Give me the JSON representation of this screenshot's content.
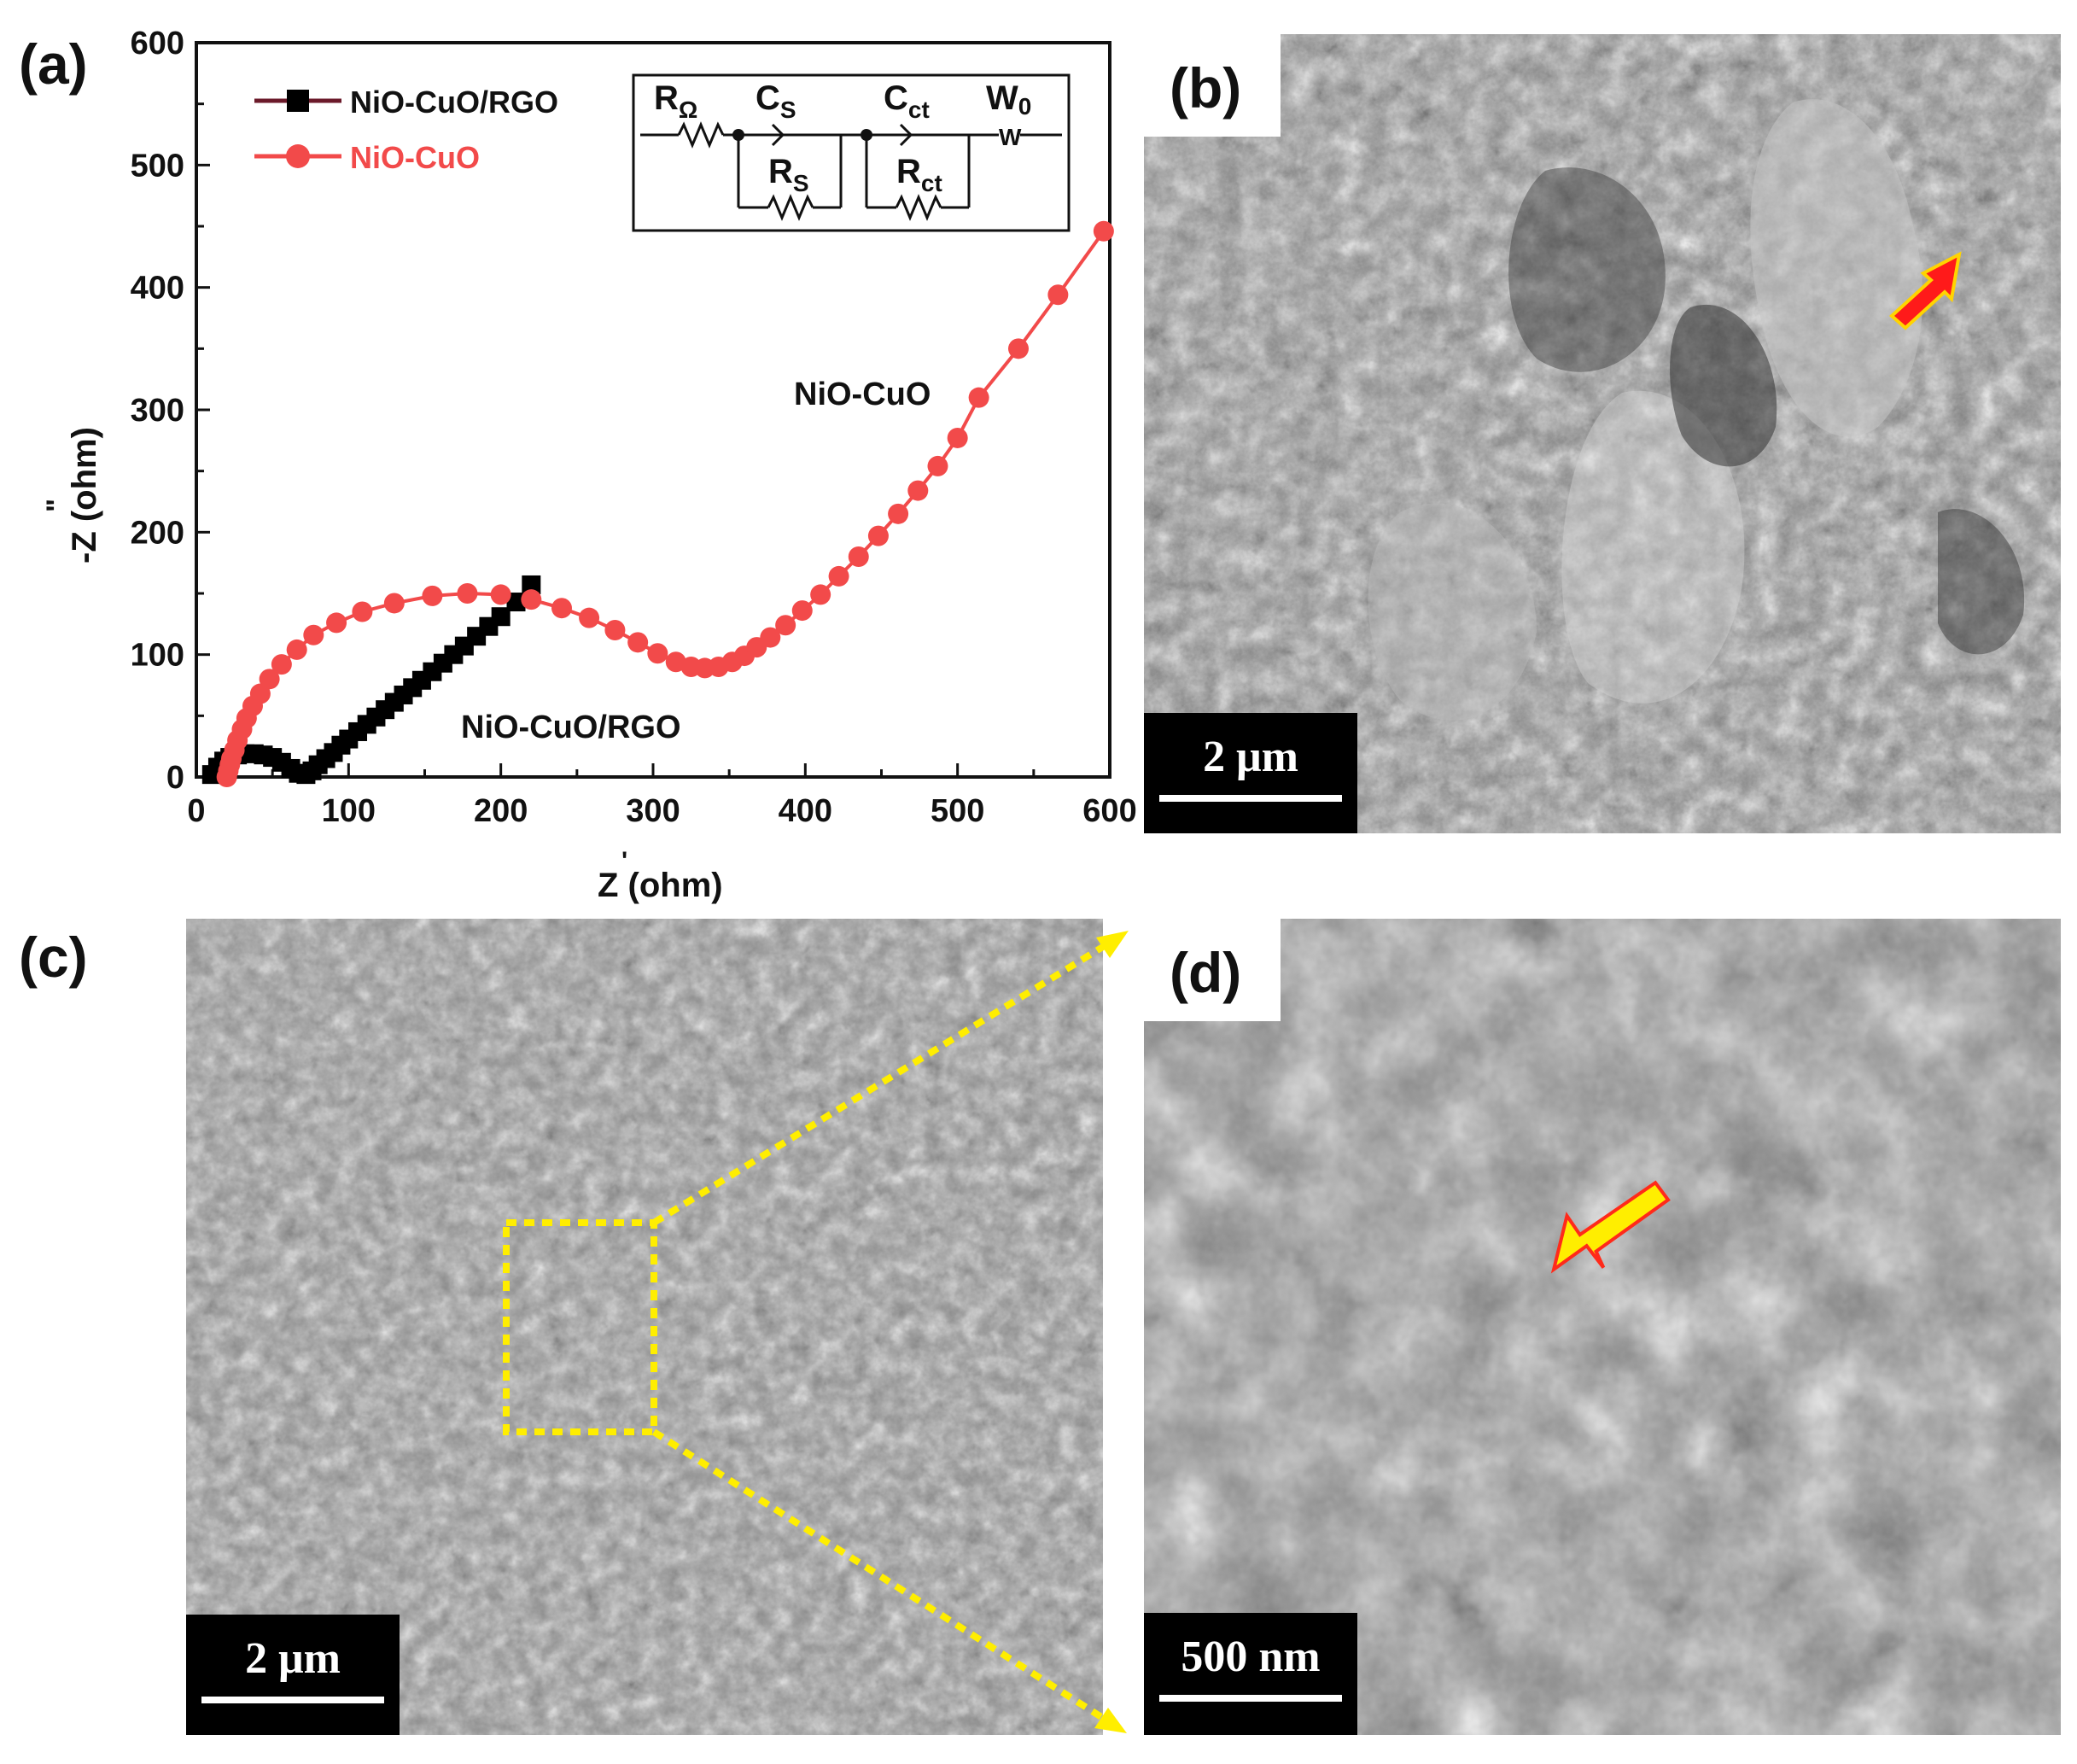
{
  "panels": {
    "a": {
      "letter": "(a)"
    },
    "b": {
      "letter": "(b)",
      "scale_label": "2 μm"
    },
    "c": {
      "letter": "(c)",
      "scale_label": "2 μm"
    },
    "d": {
      "letter": "(d)",
      "scale_label": "500 nm"
    }
  },
  "colors": {
    "nio_cuo": "#f24a4a",
    "nio_cuo_rgo": "#000000",
    "rgo_legend_line": "#6b1a2a",
    "marker_arrow_red": "#ff1a1a",
    "marker_arrow_yellow": "#ffee00",
    "zoom_box": "#ffee00"
  },
  "chart_data": {
    "type": "scatter",
    "xlabel": "Z (ohm)",
    "xlabel_prime": "'",
    "ylabel": "-Z (ohm)",
    "ylabel_dprime": "\"",
    "xlim": [
      0,
      600
    ],
    "ylim": [
      0,
      600
    ],
    "xticks": [
      0,
      100,
      200,
      300,
      400,
      500,
      600
    ],
    "yticks": [
      0,
      100,
      200,
      300,
      400,
      500,
      600
    ],
    "grid": false,
    "legend_position": "top-left",
    "legend": [
      {
        "name": "NiO-CuO/RGO",
        "marker": "square"
      },
      {
        "name": "NiO-CuO",
        "marker": "circle"
      }
    ],
    "annotations": [
      {
        "text": "NiO-CuO",
        "x": 445,
        "y": 310
      },
      {
        "text": "NiO-CuO/RGO",
        "x": 280,
        "y": 38
      }
    ],
    "circuit": {
      "elements": [
        "R",
        "C",
        "C",
        "W",
        "R",
        "R"
      ],
      "subs": [
        "Ω",
        "S",
        "ct",
        "0",
        "S",
        "ct"
      ],
      "w_symbol": "W"
    },
    "series": [
      {
        "name": "NiO-CuO/RGO",
        "x": [
          10,
          14,
          18,
          22,
          27,
          32,
          38,
          44,
          50,
          56,
          62,
          67,
          72,
          76,
          80,
          85,
          90,
          95,
          100,
          106,
          112,
          118,
          124,
          130,
          136,
          142,
          148,
          155,
          162,
          169,
          176,
          184,
          192,
          200,
          210,
          220
        ],
        "y": [
          2,
          8,
          13,
          16,
          18,
          19,
          19,
          18,
          16,
          12,
          7,
          3,
          2,
          5,
          10,
          15,
          20,
          26,
          31,
          37,
          43,
          49,
          55,
          61,
          67,
          73,
          79,
          86,
          93,
          100,
          107,
          115,
          123,
          131,
          143,
          157
        ]
      },
      {
        "name": "NiO-CuO",
        "x": [
          20,
          21,
          22,
          23,
          25,
          27,
          30,
          33,
          37,
          42,
          48,
          56,
          66,
          77,
          92,
          109,
          130,
          155,
          178,
          200,
          220,
          240,
          258,
          275,
          290,
          303,
          315,
          325,
          334,
          343,
          352,
          360,
          368,
          377,
          387,
          398,
          410,
          422,
          435,
          448,
          461,
          474,
          487,
          500,
          514,
          540,
          566,
          596
        ],
        "y": [
          0,
          5,
          10,
          15,
          22,
          30,
          39,
          48,
          58,
          68,
          80,
          92,
          104,
          116,
          126,
          135,
          142,
          148,
          150,
          149,
          145,
          138,
          130,
          120,
          110,
          101,
          94,
          90,
          89,
          90,
          94,
          99,
          106,
          114,
          124,
          136,
          149,
          164,
          180,
          197,
          215,
          234,
          254,
          277,
          310,
          350,
          394,
          446
        ]
      }
    ]
  }
}
